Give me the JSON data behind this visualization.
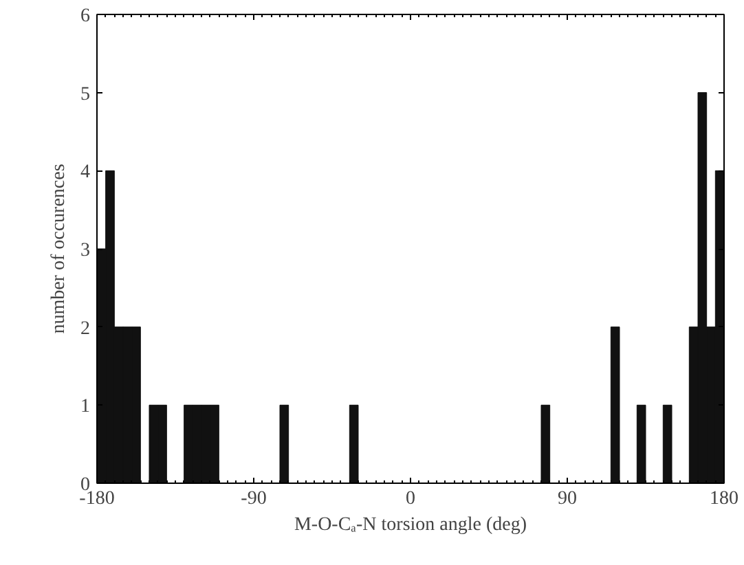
{
  "chart_data": {
    "type": "histogram",
    "xlabel": "M-O-Cₐ-N torsion angle (deg)",
    "ylabel": "number of occurences",
    "bins": [
      -180,
      -175,
      -170,
      -165,
      -160,
      -155,
      -150,
      -145,
      -140,
      -135,
      -130,
      -125,
      -120,
      -115,
      -110,
      -105,
      -100,
      -95,
      -90,
      -85,
      -80,
      -75,
      -70,
      -65,
      -60,
      -55,
      -50,
      -45,
      -40,
      -35,
      -30,
      -25,
      -20,
      -15,
      -10,
      -5,
      0,
      5,
      10,
      15,
      20,
      25,
      30,
      35,
      40,
      45,
      50,
      55,
      60,
      65,
      70,
      75,
      80,
      85,
      90,
      95,
      100,
      105,
      110,
      115,
      120,
      125,
      130,
      135,
      140,
      145,
      150,
      155,
      160,
      165,
      170,
      175,
      180
    ],
    "values": [
      3,
      4,
      2,
      2,
      2,
      0,
      1,
      1,
      0,
      0,
      1,
      1,
      1,
      1,
      0,
      0,
      0,
      0,
      0,
      0,
      0,
      1,
      0,
      0,
      0,
      0,
      0,
      0,
      0,
      1,
      0,
      0,
      0,
      0,
      0,
      0,
      0,
      0,
      0,
      0,
      0,
      0,
      0,
      0,
      0,
      0,
      0,
      0,
      0,
      0,
      0,
      1,
      0,
      0,
      0,
      0,
      0,
      0,
      0,
      2,
      0,
      0,
      1,
      0,
      0,
      1,
      0,
      0,
      2,
      5,
      2,
      4
    ],
    "color": "#111111",
    "xlim": [
      -180,
      180
    ],
    "ylim": [
      0,
      6
    ],
    "xticks": [
      -180,
      -90,
      0,
      90,
      180
    ],
    "yticks": [
      0,
      1,
      2,
      3,
      4,
      5,
      6
    ],
    "grid": false
  }
}
